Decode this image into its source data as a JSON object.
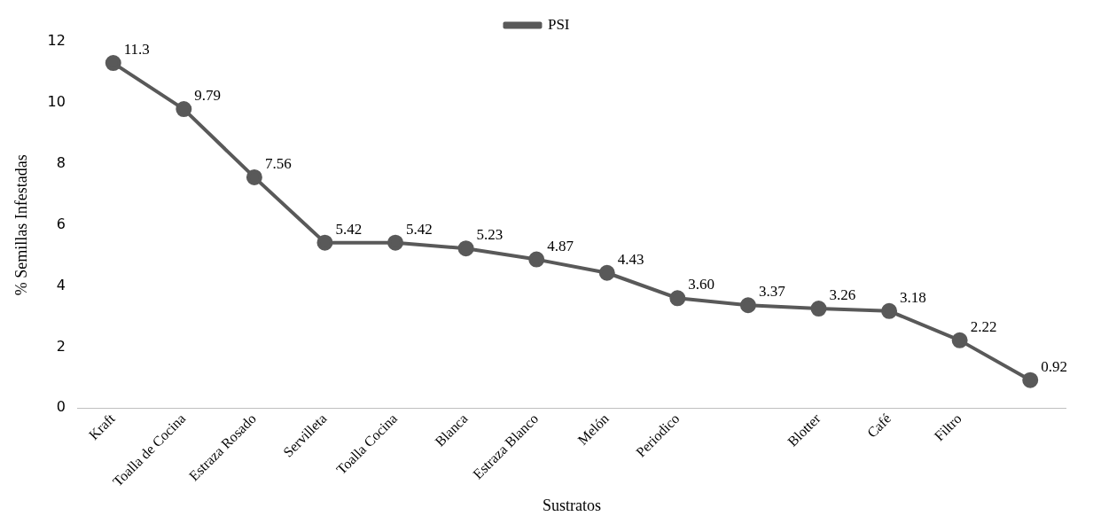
{
  "chart_data": {
    "type": "line",
    "xlabel": "Sustratos",
    "ylabel": "% Semillas Infestadas",
    "categories": [
      "Kraft",
      "Toalla de Cocina",
      "Estraza Rosado",
      "Servilleta",
      "Toalla Cocina",
      "Blanca",
      "Estraza Blanco",
      "Melón",
      "Periodico",
      null,
      "Blotter",
      "Café",
      "Filtro",
      null
    ],
    "series": [
      {
        "name": "PSI",
        "color": "#595959",
        "values": [
          11.3,
          9.79,
          7.56,
          5.42,
          5.42,
          5.23,
          4.87,
          4.43,
          3.6,
          3.37,
          3.26,
          3.18,
          2.22,
          0.92
        ],
        "value_labels": [
          "11.3",
          "9.79",
          "7.56",
          "5.42",
          "5.42",
          "5.23",
          "4.87",
          "4.43",
          "3.60",
          "3.37",
          "3.26",
          "3.18",
          "2.22",
          "0.92"
        ]
      }
    ],
    "ylim": [
      0,
      12
    ],
    "yticks": [
      0,
      2,
      4,
      6,
      8,
      10,
      12
    ],
    "grid": false,
    "legend": "top",
    "marker": "circle",
    "line_style": "solid"
  }
}
